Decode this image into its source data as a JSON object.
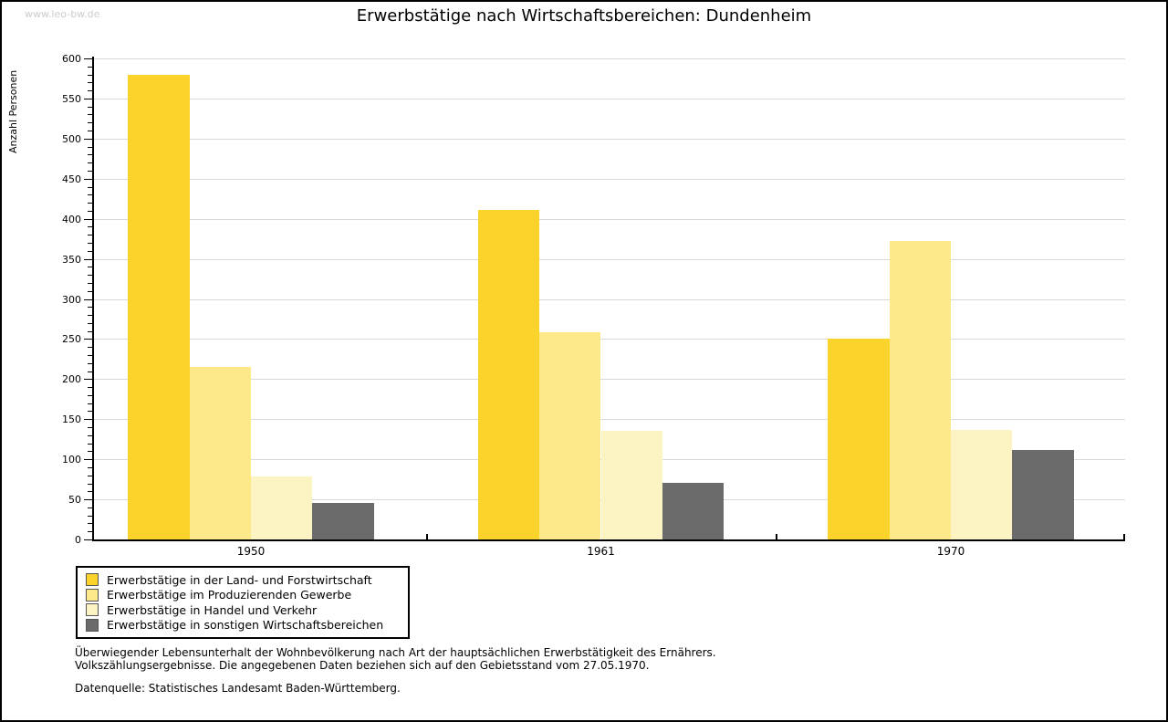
{
  "watermark": "www.leo-bw.de",
  "title": "Erwerbstätige nach Wirtschaftsbereichen: Dundenheim",
  "chart_data": {
    "type": "bar",
    "title": "Erwerbstätige nach Wirtschaftsbereichen: Dundenheim",
    "ylabel": "Anzahl Personen",
    "xlabel": "",
    "ylim": [
      0,
      600
    ],
    "ytick_step": 50,
    "yminor_step": 10,
    "grid": "horizontal-major",
    "legend_position": "bottom-left",
    "categories": [
      "1950",
      "1961",
      "1970"
    ],
    "series": [
      {
        "name": "Erwerbstätige in der Land- und Forstwirtschaft",
        "color": "#fcd32b",
        "values": [
          580,
          411,
          250
        ]
      },
      {
        "name": "Erwerbstätige im Produzierenden Gewerbe",
        "color": "#fde88a",
        "values": [
          215,
          258,
          372
        ]
      },
      {
        "name": "Erwerbstätige in Handel und Verkehr",
        "color": "#fcf3c2",
        "values": [
          78,
          135,
          137
        ]
      },
      {
        "name": "Erwerbstätige in sonstigen Wirtschaftsbereichen",
        "color": "#6b6b6b",
        "values": [
          45,
          71,
          112
        ]
      }
    ]
  },
  "footer": {
    "line1": "Überwiegender Lebensunterhalt der Wohnbevölkerung nach Art der hauptsächlichen Erwerbstätigkeit des Ernährers.",
    "line2": "Volkszählungsergebnisse. Die angegebenen Daten beziehen sich auf den Gebietsstand vom 27.05.1970.",
    "line3": "Datenquelle: Statistisches Landesamt Baden-Württemberg."
  }
}
